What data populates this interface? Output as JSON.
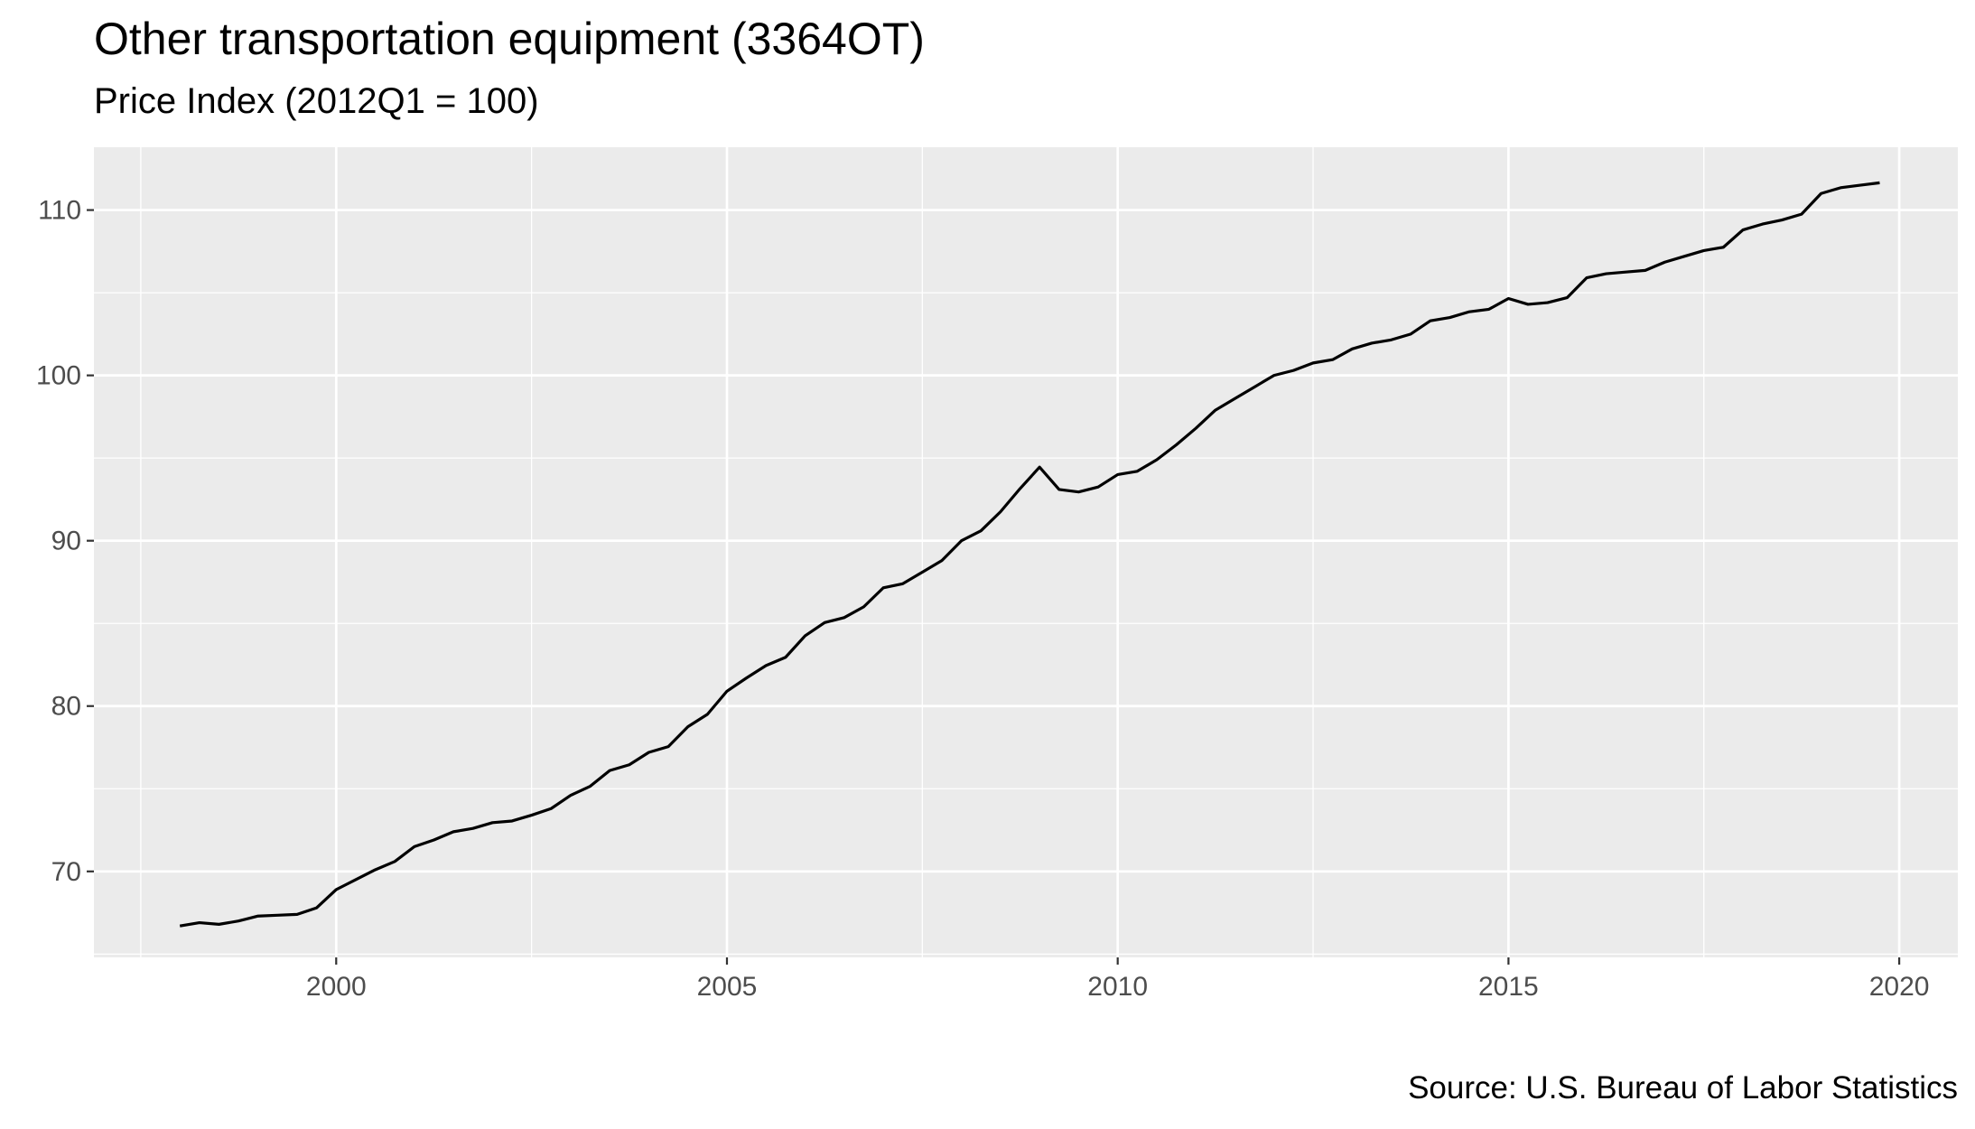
{
  "chart_data": {
    "type": "line",
    "title": "Other transportation equipment (3364OT)",
    "subtitle": "Price Index (2012Q1 = 100)",
    "caption": "Source: U.S. Bureau of Labor Statistics",
    "xlabel": "",
    "ylabel": "",
    "xlim": [
      1996.9,
      2020.75
    ],
    "ylim": [
      64.8,
      113.8
    ],
    "x_ticks": [
      2000,
      2005,
      2010,
      2015,
      2020
    ],
    "x_tick_labels": [
      "2000",
      "2005",
      "2010",
      "2015",
      "2020"
    ],
    "y_ticks": [
      70,
      80,
      90,
      100,
      110
    ],
    "y_tick_labels": [
      "70",
      "80",
      "90",
      "100",
      "110"
    ],
    "grid": true,
    "background": "#EBEBEB",
    "line_color": "#000000",
    "series": [
      {
        "x": [
          1998.0,
          1998.25,
          1998.5,
          1998.75,
          1999.0,
          1999.25,
          1999.5,
          1999.75,
          2000.0,
          2000.25,
          2000.5,
          2000.75,
          2001.0,
          2001.25,
          2001.5,
          2001.75,
          2002.0,
          2002.25,
          2002.5,
          2002.75,
          2003.0,
          2003.25,
          2003.5,
          2003.75,
          2004.0,
          2004.25,
          2004.5,
          2004.75,
          2005.0,
          2005.25,
          2005.5,
          2005.75,
          2006.0,
          2006.25,
          2006.5,
          2006.75,
          2007.0,
          2007.25,
          2007.5,
          2007.75,
          2008.0,
          2008.25,
          2008.5,
          2008.75,
          2009.0,
          2009.25,
          2009.5,
          2009.75,
          2010.0,
          2010.25,
          2010.5,
          2010.75,
          2011.0,
          2011.25,
          2011.5,
          2011.75,
          2012.0,
          2012.25,
          2012.5,
          2012.75,
          2013.0,
          2013.25,
          2013.5,
          2013.75,
          2014.0,
          2014.25,
          2014.5,
          2014.75,
          2015.0,
          2015.25,
          2015.5,
          2015.75,
          2016.0,
          2016.25,
          2016.5,
          2016.75,
          2017.0,
          2017.25,
          2017.5,
          2017.75,
          2018.0,
          2018.25,
          2018.5,
          2018.75,
          2019.0,
          2019.25,
          2019.5,
          2019.75
        ],
        "values": [
          66.7,
          66.9,
          66.8,
          67.0,
          67.3,
          67.35,
          67.4,
          67.8,
          68.9,
          69.5,
          70.1,
          70.6,
          71.5,
          71.9,
          72.4,
          72.6,
          72.95,
          73.05,
          73.4,
          73.8,
          74.6,
          75.15,
          76.1,
          76.45,
          77.2,
          77.55,
          78.75,
          79.5,
          80.9,
          81.7,
          82.45,
          82.95,
          84.25,
          85.05,
          85.35,
          86.0,
          87.15,
          87.4,
          88.1,
          88.8,
          90.0,
          90.6,
          91.75,
          93.15,
          94.45,
          93.1,
          92.95,
          93.25,
          94.0,
          94.2,
          94.9,
          95.8,
          96.8,
          97.9,
          98.6,
          99.3,
          100.0,
          100.3,
          100.75,
          100.95,
          101.6,
          101.95,
          102.15,
          102.5,
          103.3,
          103.5,
          103.85,
          104.0,
          104.65,
          104.3,
          104.4,
          104.7,
          105.9,
          106.15,
          106.25,
          106.35,
          106.85,
          107.2,
          107.55,
          107.75,
          108.8,
          109.15,
          109.4,
          109.75,
          111.0,
          111.35,
          111.5,
          111.65
        ]
      }
    ]
  }
}
